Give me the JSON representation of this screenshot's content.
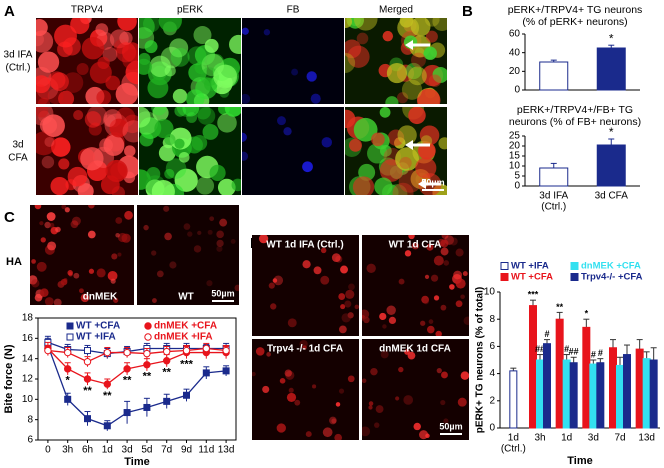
{
  "panels": {
    "labels": [
      "A",
      "B",
      "C",
      "D"
    ]
  },
  "panel_a": {
    "columns": [
      "TRPV4",
      "pERK",
      "FB",
      "Merged"
    ],
    "rows": [
      [
        "3d IFA",
        "(Ctrl.)"
      ],
      [
        "3d",
        "CFA"
      ]
    ],
    "scale": "50µm"
  },
  "panel_c": {
    "side": "HA",
    "images": [
      "dnMEK",
      "WT"
    ],
    "scale": "50µm"
  },
  "panel_d": {
    "images": [
      "WT 1d IFA (Ctrl.)",
      "WT 1d CFA",
      "Trpv4 -/- 1d CFA",
      "dnMEK 1d CFA"
    ],
    "scale": "50µm"
  },
  "chart_data": [
    {
      "type": "bar",
      "title": [
        "pERK+/TRPV4+ TG neurons",
        "(% of pERK+ neurons)"
      ],
      "categories": [
        null,
        null
      ],
      "values": [
        30,
        45
      ],
      "errors": [
        2,
        3
      ],
      "annotations": [
        null,
        "*"
      ],
      "colors": [
        "#ffffff",
        "#1a2a8c"
      ],
      "edge": "#1a2a8c",
      "ylim": [
        0,
        60
      ],
      "yticks": [
        0,
        20,
        40,
        60
      ]
    },
    {
      "type": "bar",
      "title": [
        "pERK+/TRPV4+/FB+ TG",
        "neurons (% of FB+ neurons)"
      ],
      "categories": [
        [
          "3d IFA",
          "(Ctrl.)"
        ],
        [
          "3d CFA"
        ]
      ],
      "values": [
        9,
        20.5
      ],
      "errors": [
        2.3,
        3
      ],
      "annotations": [
        null,
        "*"
      ],
      "colors": [
        "#ffffff",
        "#1a2a8c"
      ],
      "edge": "#1a2a8c",
      "ylim": [
        0,
        25
      ],
      "yticks": [
        0,
        5,
        10,
        15,
        20,
        25
      ]
    },
    {
      "type": "line",
      "ylabel": "Bite force (N)",
      "xlabel": "Time",
      "categories": [
        "0",
        "3h",
        "6h",
        "1d",
        "3d",
        "5d",
        "7d",
        "9d",
        "11d",
        "13d"
      ],
      "ylim": [
        6,
        18
      ],
      "yticks": [
        6,
        8,
        10,
        12,
        14,
        16,
        18
      ],
      "series": [
        {
          "name": "WT +CFA",
          "color": "#1a2a8c",
          "marker": "square",
          "filled": true,
          "values": [
            15.3,
            10,
            8.1,
            7.4,
            8.7,
            9.2,
            9.8,
            10.4,
            12.6,
            12.8
          ],
          "errors": [
            0.7,
            0.6,
            0.7,
            0.5,
            1.1,
            0.9,
            0.7,
            0.6,
            0.6,
            0.5
          ]
        },
        {
          "name": "WT +IFA",
          "color": "#1a2a8c",
          "marker": "square",
          "filled": false,
          "values": [
            15.6,
            14.9,
            14.8,
            14.5,
            14.7,
            15,
            15,
            15,
            15,
            15
          ],
          "errors": [
            0.6,
            0.5,
            0.5,
            0.5,
            0.5,
            0.5,
            0.5,
            0.5,
            0.4,
            0.5
          ]
        },
        {
          "name": "dnMEK +CFA",
          "color": "#e8141c",
          "marker": "circle",
          "filled": true,
          "values": [
            15,
            13,
            12,
            11.5,
            13,
            13.4,
            13.8,
            14.6,
            14.6,
            14.6
          ],
          "errors": [
            0.6,
            0.6,
            0.6,
            0.5,
            0.6,
            0.6,
            0.6,
            0.6,
            0.6,
            0.6
          ],
          "annotations": [
            null,
            "*",
            "**",
            "**",
            "**",
            "**",
            "**",
            "***",
            null,
            null
          ]
        },
        {
          "name": "dnMEK +IFA",
          "color": "#e8141c",
          "marker": "circle",
          "filled": false,
          "values": [
            14.8,
            14.6,
            13.7,
            14.6,
            14.6,
            14.5,
            14.7,
            14.8,
            15,
            14.8
          ],
          "errors": [
            0.5,
            0.5,
            0.5,
            0.5,
            0.5,
            0.5,
            0.5,
            0.5,
            0.5,
            0.5
          ]
        }
      ]
    },
    {
      "type": "groupedbar",
      "ylabel": "pERK+ TG neurons (% of total)",
      "xlabel": "Time",
      "categories": [
        [
          "1d",
          "(Ctrl.)"
        ],
        [
          "3h"
        ],
        [
          "1d"
        ],
        [
          "3d"
        ],
        [
          "7d"
        ],
        [
          "13d"
        ]
      ],
      "ylim": [
        0,
        10
      ],
      "yticks": [
        0,
        2,
        4,
        6,
        8,
        10
      ],
      "series": [
        {
          "name": "WT +IFA",
          "color": "#1a2a8c",
          "filled": false,
          "values": [
            4.2,
            null,
            null,
            null,
            null,
            null
          ],
          "errors": [
            0.2,
            null,
            null,
            null,
            null,
            null
          ],
          "annotations": [
            null,
            null,
            null,
            null,
            null,
            null
          ]
        },
        {
          "name": "WT +CFA",
          "color": "#e8141c",
          "filled": true,
          "values": [
            null,
            9,
            8,
            7.4,
            5.9,
            5.8
          ],
          "errors": [
            null,
            0.4,
            0.5,
            0.6,
            0.6,
            0.7
          ],
          "annotations": [
            null,
            "***",
            "**",
            "*",
            null,
            null
          ]
        },
        {
          "name": "dnMEK +CFA",
          "color": "#33e0f0",
          "filled": true,
          "values": [
            null,
            5,
            5,
            4.7,
            4.6,
            5.1
          ],
          "errors": [
            null,
            0.4,
            0.4,
            0.3,
            0.6,
            0.5
          ],
          "annotations": [
            null,
            "##",
            "#",
            "#",
            null,
            null
          ]
        },
        {
          "name": "Trpv4-/- +CFA",
          "color": "#1a2a8c",
          "filled": true,
          "values": [
            null,
            6.2,
            4.8,
            4.8,
            5.4,
            5
          ],
          "errors": [
            null,
            0.3,
            0.4,
            0.3,
            0.7,
            0.9
          ],
          "annotations": [
            null,
            "#",
            "##",
            "#",
            null,
            null
          ]
        }
      ]
    }
  ]
}
